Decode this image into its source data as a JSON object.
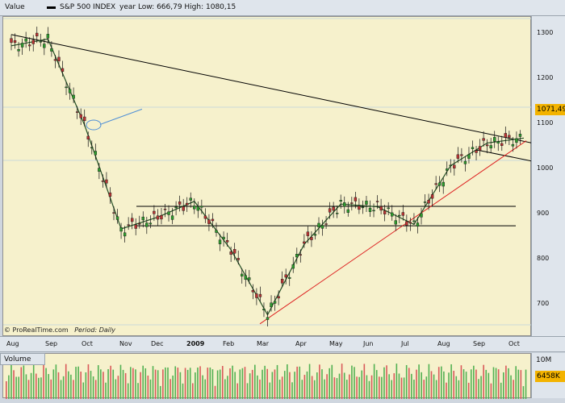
{
  "header": {
    "value_label": "Value",
    "series_label": "S&P 500 INDEX",
    "range_label": "year Low: 666,79 High: 1080,15"
  },
  "chart": {
    "watermark": "© ProRealTime.com",
    "period_label": "Period: Daily",
    "current_value": "1071,49",
    "y_ticks": [
      "1300",
      "1200",
      "1100",
      "1000",
      "900",
      "800",
      "700"
    ],
    "x_ticks": [
      "Aug",
      "Sep",
      "Oct",
      "Nov",
      "Dec",
      "2009",
      "Feb",
      "Mar",
      "Apr",
      "May",
      "Jun",
      "Jul",
      "Aug",
      "Sep",
      "Oct"
    ]
  },
  "volume": {
    "label": "Volume",
    "axis_tick": "10M",
    "current_value": "6458K"
  },
  "colors": {
    "up_candle": "#2e9b2e",
    "down_candle": "#b83434",
    "background": "#f6f1cc",
    "trend_red": "#dd1f1f",
    "trend_black": "#000000",
    "annotation_blue": "#4f8fd6"
  },
  "chart_data": {
    "type": "line",
    "series_name": "S&P 500 INDEX",
    "ylim": [
      640,
      1330
    ],
    "x": [
      "Aug",
      "Sep",
      "Oct",
      "Nov",
      "Dec",
      "2009",
      "Feb",
      "Mar",
      "Apr",
      "May",
      "Jun",
      "Jul",
      "Aug",
      "Sep",
      "Oct"
    ],
    "close": [
      1275,
      1290,
      1100,
      870,
      896,
      931,
      824,
      680,
      836,
      925,
      919,
      880,
      1010,
      1060,
      1071
    ],
    "support_levels": [
      920,
      877
    ],
    "volume_axis_label": "10M"
  }
}
